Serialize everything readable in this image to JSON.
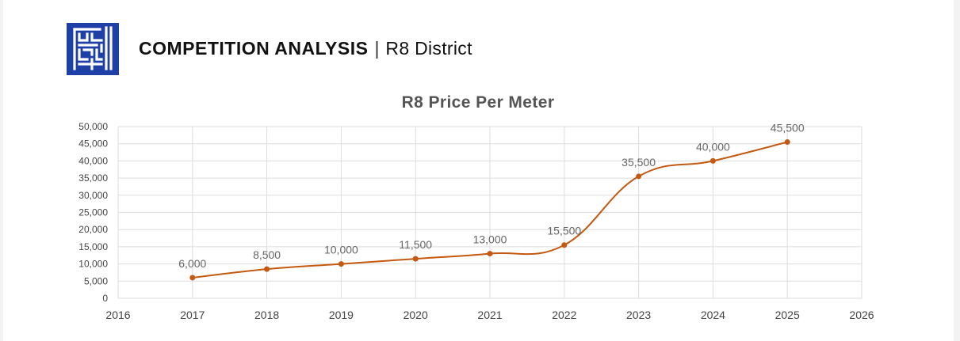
{
  "header": {
    "logo_icon": "maze-logo-icon",
    "title": "COMPETITION ANALYSIS",
    "separator": "|",
    "subtitle": "R8 District"
  },
  "colors": {
    "brand_blue": "#1d3fa6",
    "series": "#c45911",
    "grid": "#dddddd"
  },
  "chart_data": {
    "type": "line",
    "title": "R8 Price Per Meter",
    "xlabel": "",
    "ylabel": "",
    "xlim": [
      2016,
      2026
    ],
    "ylim": [
      0,
      50000
    ],
    "x_ticks": [
      "2016",
      "2017",
      "2018",
      "2019",
      "2020",
      "2021",
      "2022",
      "2023",
      "2024",
      "2025",
      "2026"
    ],
    "y_ticks": [
      "0",
      "5,000",
      "10,000",
      "15,000",
      "20,000",
      "25,000",
      "30,000",
      "35,000",
      "40,000",
      "45,000",
      "50,000"
    ],
    "grid": true,
    "legend": "none",
    "smooth": true,
    "series": [
      {
        "x": [
          2017,
          2018,
          2019,
          2020,
          2021,
          2022,
          2023,
          2024,
          2025
        ],
        "values": [
          6000,
          8500,
          10000,
          11500,
          13000,
          15500,
          35500,
          40000,
          45500
        ],
        "labels": [
          "6,000",
          "8,500",
          "10,000",
          "11,500",
          "13,000",
          "15,500",
          "35,500",
          "40,000",
          "45,500"
        ]
      }
    ]
  }
}
